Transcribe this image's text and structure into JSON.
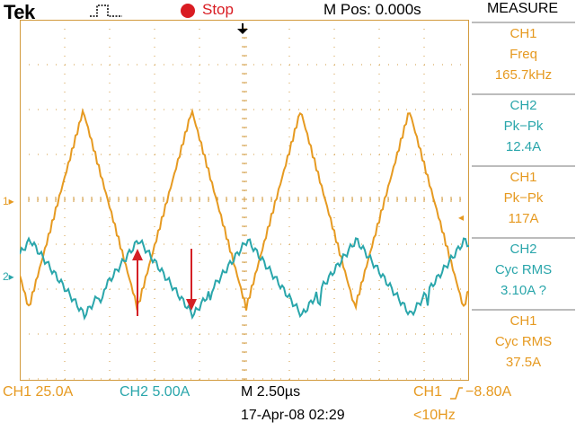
{
  "header": {
    "brand": "Tek",
    "trigger_state_icon": "pulse-waveform-icon",
    "run_status": "Stop",
    "m_pos": "M Pos: 0.000s"
  },
  "colors": {
    "ch1": "#e69a21",
    "ch2": "#2aa6ab",
    "grid": "#d29a3c",
    "arrow": "#d42025",
    "stop": "#d91c22"
  },
  "channel_markers": {
    "ch1": "1▸",
    "ch2": "2▸",
    "ch1_trigger_level": "◂"
  },
  "measure": {
    "title": "MEASURE",
    "items": [
      {
        "source": "CH1",
        "name": "Freq",
        "value": "165.7kHz",
        "channel": "ch1"
      },
      {
        "source": "CH2",
        "name": "Pk−Pk",
        "value": "12.4A",
        "channel": "ch2"
      },
      {
        "source": "CH1",
        "name": "Pk−Pk",
        "value": "117A",
        "channel": "ch1"
      },
      {
        "source": "CH2",
        "name": "Cyc RMS",
        "value": "3.10A ?",
        "channel": "ch2"
      },
      {
        "source": "CH1",
        "name": "Cyc RMS",
        "value": "37.5A",
        "channel": "ch1"
      }
    ]
  },
  "footer": {
    "ch1_scale": "CH1  25.0A",
    "ch2_scale": "CH2  5.00A",
    "timebase": "M 2.50µs",
    "trigger_source": "CH1",
    "trigger_slope_icon": "rising-edge-icon",
    "trigger_level": "−8.80A",
    "date": "17-Apr-08 02:29",
    "trigger_freq": "<10Hz"
  }
}
